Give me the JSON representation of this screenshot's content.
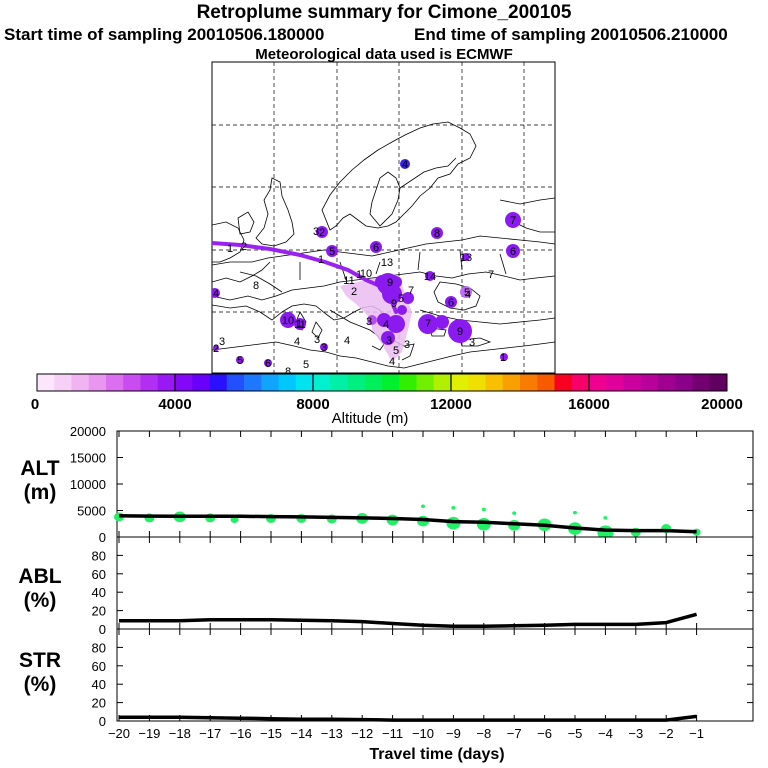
{
  "header": {
    "title": "Retroplume summary for Cimone_200105",
    "start_label": "Start time of sampling 20010506.180000",
    "end_label": "End time of sampling 20010506.210000",
    "met_label": "Meteorological data used is ECMWF"
  },
  "colors": {
    "plume_purple": "#8000ff",
    "track_purple": "#9a22ee",
    "light_plume": "#e8b0f2",
    "bubble_green": "#22ee66"
  },
  "colorbar": {
    "ticks": [
      "0",
      "4000",
      "8000",
      "12000",
      "16000",
      "20000"
    ],
    "tick_values": [
      0,
      4000,
      8000,
      12000,
      16000,
      20000
    ],
    "label": "Altitude (m)",
    "colors": [
      "#fbe6fb",
      "#f6d0f6",
      "#f0b4f2",
      "#e896f0",
      "#dc6ef0",
      "#c84cf0",
      "#b22ef2",
      "#9a18f4",
      "#8408f8",
      "#6a00fa",
      "#2a10ff",
      "#2250ff",
      "#1e78ff",
      "#10a4ff",
      "#00c8ff",
      "#00e4f0",
      "#00f0d0",
      "#00f0a8",
      "#00f080",
      "#00f05c",
      "#00f030",
      "#30f000",
      "#70f000",
      "#b0f000",
      "#e0f000",
      "#f0e000",
      "#f8c000",
      "#f8a000",
      "#f87c00",
      "#f85a00",
      "#f80020",
      "#f8006a",
      "#f00090",
      "#e0009c",
      "#cc009e",
      "#b8009a",
      "#a00090",
      "#8a0088",
      "#720070",
      "#600060"
    ]
  },
  "map": {
    "labels": [
      {
        "text": "1",
        "x": 230,
        "y": 248
      },
      {
        "text": "2",
        "x": 244,
        "y": 246
      },
      {
        "text": "1",
        "x": 321,
        "y": 259
      },
      {
        "text": "1",
        "x": 359,
        "y": 274
      },
      {
        "text": "10",
        "x": 366,
        "y": 273
      },
      {
        "text": "11",
        "x": 349,
        "y": 280
      },
      {
        "text": "2",
        "x": 354,
        "y": 291
      },
      {
        "text": "13",
        "x": 387,
        "y": 262
      },
      {
        "text": "14",
        "x": 430,
        "y": 276
      },
      {
        "text": "13",
        "x": 466,
        "y": 257
      },
      {
        "text": "7",
        "x": 491,
        "y": 274
      },
      {
        "text": "8",
        "x": 256,
        "y": 285
      },
      {
        "text": "5",
        "x": 467,
        "y": 292
      },
      {
        "text": "9",
        "x": 390,
        "y": 282
      },
      {
        "text": "9",
        "x": 394,
        "y": 303
      },
      {
        "text": "6",
        "x": 451,
        "y": 302
      },
      {
        "text": "3",
        "x": 316,
        "y": 231
      },
      {
        "text": "2",
        "x": 322,
        "y": 232
      },
      {
        "text": "4",
        "x": 405,
        "y": 164
      },
      {
        "text": "3",
        "x": 222,
        "y": 341
      },
      {
        "text": "2",
        "x": 216,
        "y": 348
      },
      {
        "text": "1",
        "x": 299,
        "y": 323
      },
      {
        "text": "4",
        "x": 297,
        "y": 341
      },
      {
        "text": "3",
        "x": 317,
        "y": 339
      },
      {
        "text": "4",
        "x": 347,
        "y": 340
      },
      {
        "text": "3",
        "x": 369,
        "y": 321
      },
      {
        "text": "4",
        "x": 386,
        "y": 324
      },
      {
        "text": "3",
        "x": 389,
        "y": 340
      },
      {
        "text": "5",
        "x": 396,
        "y": 350
      },
      {
        "text": "4",
        "x": 392,
        "y": 361
      },
      {
        "text": "3",
        "x": 407,
        "y": 344
      },
      {
        "text": "3",
        "x": 472,
        "y": 342
      },
      {
        "text": "5",
        "x": 306,
        "y": 364
      },
      {
        "text": "8",
        "x": 288,
        "y": 371
      },
      {
        "text": "4",
        "x": 468,
        "y": 294
      },
      {
        "text": "7",
        "x": 513,
        "y": 220
      },
      {
        "text": "6",
        "x": 513,
        "y": 251
      },
      {
        "text": "8",
        "x": 437,
        "y": 233
      },
      {
        "text": "6",
        "x": 376,
        "y": 247
      },
      {
        "text": "5",
        "x": 332,
        "y": 251
      },
      {
        "text": "4",
        "x": 216,
        "y": 293
      },
      {
        "text": "5",
        "x": 240,
        "y": 360
      },
      {
        "text": "6",
        "x": 268,
        "y": 363
      },
      {
        "text": "7",
        "x": 428,
        "y": 323
      },
      {
        "text": "9",
        "x": 460,
        "y": 331
      },
      {
        "text": "5",
        "x": 401,
        "y": 298
      },
      {
        "text": "10",
        "x": 288,
        "y": 320
      },
      {
        "text": "11",
        "x": 300,
        "y": 324
      },
      {
        "text": "3",
        "x": 324,
        "y": 347
      },
      {
        "text": "7",
        "x": 411,
        "y": 290
      },
      {
        "text": "1",
        "x": 503,
        "y": 357
      }
    ]
  },
  "chart_data": [
    {
      "type": "line",
      "panel": "ALT",
      "ylabel_line1": "ALT",
      "ylabel_line2": "(m)",
      "ylim": [
        0,
        20000
      ],
      "yticks": [
        0,
        5000,
        10000,
        15000,
        20000
      ],
      "ytick_labels": [
        "0",
        "5000",
        "10000",
        "15000",
        "20000"
      ],
      "x": [
        -20,
        -19,
        -18,
        -17,
        -16,
        -15,
        -14,
        -13,
        -12,
        -11,
        -10,
        -9,
        -8,
        -7,
        -6,
        -5,
        -4,
        -3,
        -2,
        -1
      ],
      "series": [
        {
          "name": "median altitude",
          "values": [
            4000,
            3950,
            3900,
            3900,
            3900,
            3850,
            3800,
            3700,
            3600,
            3500,
            3300,
            2900,
            2800,
            2500,
            2200,
            1700,
            1300,
            1200,
            1200,
            1000
          ]
        }
      ],
      "scatter": [
        {
          "x": -20,
          "y": 3800,
          "s": 5
        },
        {
          "x": -19,
          "y": 3600,
          "s": 5
        },
        {
          "x": -18,
          "y": 3800,
          "s": 6
        },
        {
          "x": -17,
          "y": 3600,
          "s": 5
        },
        {
          "x": -16.2,
          "y": 3300,
          "s": 4
        },
        {
          "x": -15,
          "y": 3500,
          "s": 5
        },
        {
          "x": -14,
          "y": 3500,
          "s": 5
        },
        {
          "x": -13,
          "y": 3400,
          "s": 5
        },
        {
          "x": -12,
          "y": 3500,
          "s": 6
        },
        {
          "x": -11,
          "y": 3200,
          "s": 6
        },
        {
          "x": -10,
          "y": 3000,
          "s": 6
        },
        {
          "x": -9,
          "y": 2600,
          "s": 7
        },
        {
          "x": -8,
          "y": 2400,
          "s": 7
        },
        {
          "x": -7,
          "y": 2200,
          "s": 6
        },
        {
          "x": -6,
          "y": 2300,
          "s": 7
        },
        {
          "x": -5,
          "y": 1600,
          "s": 7
        },
        {
          "x": -4,
          "y": 800,
          "s": 8
        },
        {
          "x": -3,
          "y": 900,
          "s": 5
        },
        {
          "x": -2,
          "y": 1600,
          "s": 5
        },
        {
          "x": -1,
          "y": 900,
          "s": 4
        },
        {
          "x": -10,
          "y": 5800,
          "s": 2
        },
        {
          "x": -9,
          "y": 5500,
          "s": 2
        },
        {
          "x": -8,
          "y": 5200,
          "s": 2
        },
        {
          "x": -7,
          "y": 4500,
          "s": 2
        },
        {
          "x": -5,
          "y": 4600,
          "s": 2
        },
        {
          "x": -4,
          "y": 3600,
          "s": 2
        }
      ]
    },
    {
      "type": "line",
      "panel": "ABL",
      "ylabel_line1": "ABL",
      "ylabel_line2": "(%)",
      "ylim": [
        0,
        100
      ],
      "yticks": [
        0,
        20,
        40,
        60,
        80
      ],
      "ytick_labels": [
        "0",
        "20",
        "40",
        "60",
        "80"
      ],
      "x": [
        -20,
        -19,
        -18,
        -17,
        -16,
        -15,
        -14,
        -13,
        -12,
        -11,
        -10,
        -9,
        -8,
        -7,
        -6,
        -5,
        -4,
        -3,
        -2,
        -1
      ],
      "series": [
        {
          "name": "ABL fraction",
          "values": [
            9,
            9,
            9,
            10,
            10,
            10,
            9.5,
            9,
            8,
            6,
            4,
            3,
            3,
            3.5,
            4,
            5,
            5,
            5,
            7,
            16
          ]
        }
      ]
    },
    {
      "type": "line",
      "panel": "STR",
      "ylabel_line1": "STR",
      "ylabel_line2": "(%)",
      "ylim": [
        0,
        100
      ],
      "yticks": [
        0,
        20,
        40,
        60,
        80
      ],
      "ytick_labels": [
        "0",
        "20",
        "40",
        "60",
        "80"
      ],
      "x": [
        -20,
        -19,
        -18,
        -17,
        -16,
        -15,
        -14,
        -13,
        -12,
        -11,
        -10,
        -9,
        -8,
        -7,
        -6,
        -5,
        -4,
        -3,
        -2,
        -1
      ],
      "series": [
        {
          "name": "STR fraction",
          "values": [
            4,
            4,
            4,
            3.5,
            3,
            2.5,
            2,
            2,
            1.5,
            1,
            1,
            1,
            1,
            1,
            1,
            1,
            1,
            1,
            1,
            5
          ]
        }
      ],
      "xticks": [
        -20,
        -19,
        -18,
        -17,
        -16,
        -15,
        -14,
        -13,
        -12,
        -11,
        -10,
        -9,
        -8,
        -7,
        -6,
        -5,
        -4,
        -3,
        -2,
        -1
      ],
      "xtick_labels": [
        "−20",
        "−19",
        "−18",
        "−17",
        "−16",
        "−15",
        "−14",
        "−13",
        "−12",
        "−11",
        "−10",
        "−9",
        "−8",
        "−7",
        "−6",
        "−5",
        "−4",
        "−3",
        "−2",
        "−1"
      ],
      "xlabel": "Travel time (days)"
    }
  ]
}
